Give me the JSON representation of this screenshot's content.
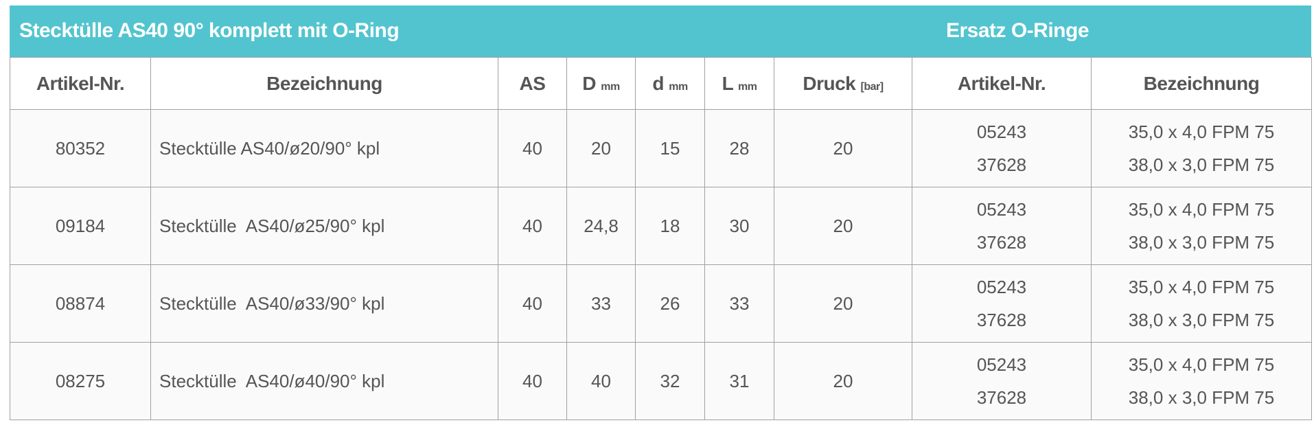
{
  "header": {
    "title_left": "Stecktülle AS40 90° komplett mit O-Ring",
    "title_right": "Ersatz O-Ringe",
    "accent_color": "#52c4cf"
  },
  "columns": [
    {
      "label": "Artikel-Nr.",
      "unit": ""
    },
    {
      "label": "Bezeichnung",
      "unit": ""
    },
    {
      "label": "AS",
      "unit": ""
    },
    {
      "label": "D",
      "unit": "mm"
    },
    {
      "label": "d",
      "unit": "mm"
    },
    {
      "label": "L",
      "unit": "mm"
    },
    {
      "label": "Druck",
      "unit": "[bar]"
    },
    {
      "label": "Artikel-Nr.",
      "unit": ""
    },
    {
      "label": "Bezeichnung",
      "unit": ""
    }
  ],
  "rows": [
    {
      "artikel": "80352",
      "bezeichnung": "Stecktülle AS40/ø20/90° kpl",
      "as": "40",
      "D": "20",
      "d": "15",
      "L": "28",
      "druck": "20",
      "oring_artikel": [
        "05243",
        "37628"
      ],
      "oring_bezeichnung": [
        "35,0 x 4,0 FPM 75",
        "38,0 x 3,0 FPM 75"
      ]
    },
    {
      "artikel": "09184",
      "bezeichnung": "Stecktülle  AS40/ø25/90° kpl",
      "as": "40",
      "D": "24,8",
      "d": "18",
      "L": "30",
      "druck": "20",
      "oring_artikel": [
        "05243",
        "37628"
      ],
      "oring_bezeichnung": [
        "35,0 x 4,0 FPM 75",
        "38,0 x 3,0 FPM 75"
      ]
    },
    {
      "artikel": "08874",
      "bezeichnung": "Stecktülle  AS40/ø33/90° kpl",
      "as": "40",
      "D": "33",
      "d": "26",
      "L": "33",
      "druck": "20",
      "oring_artikel": [
        "05243",
        "37628"
      ],
      "oring_bezeichnung": [
        "35,0 x 4,0 FPM 75",
        "38,0 x 3,0 FPM 75"
      ]
    },
    {
      "artikel": "08275",
      "bezeichnung": "Stecktülle  AS40/ø40/90° kpl",
      "as": "40",
      "D": "40",
      "d": "32",
      "L": "31",
      "druck": "20",
      "oring_artikel": [
        "05243",
        "37628"
      ],
      "oring_bezeichnung": [
        "35,0 x 4,0 FPM 75",
        "38,0 x 3,0 FPM 75"
      ]
    }
  ]
}
